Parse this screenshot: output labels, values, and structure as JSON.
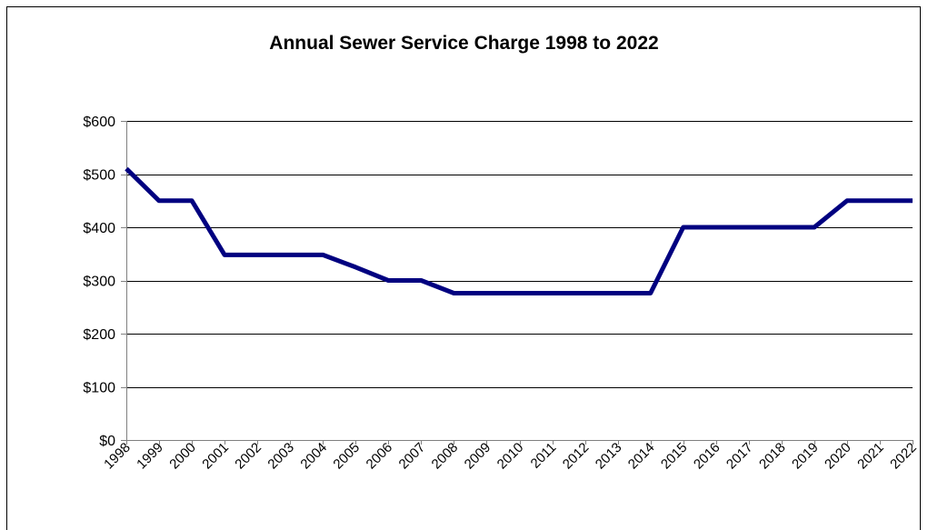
{
  "chart_data": {
    "type": "line",
    "title": "Annual Sewer Service Charge 1998 to 2022",
    "xlabel": "",
    "ylabel": "",
    "x": [
      "1998",
      "1999",
      "2000",
      "2001",
      "2002",
      "2003",
      "2004",
      "2005",
      "2006",
      "2007",
      "2008",
      "2009",
      "2010",
      "2011",
      "2012",
      "2013",
      "2014",
      "2015",
      "2016",
      "2017",
      "2018",
      "2019",
      "2020",
      "2021",
      "2022"
    ],
    "series": [
      {
        "values": [
          510,
          450,
          450,
          348,
          348,
          348,
          348,
          325,
          300,
          300,
          276,
          276,
          276,
          276,
          276,
          276,
          276,
          400,
          400,
          400,
          400,
          400,
          450,
          450,
          450
        ]
      }
    ],
    "ylim": [
      0,
      600
    ],
    "yticks": [
      0,
      100,
      200,
      300,
      400,
      500,
      600
    ],
    "ytick_labels": [
      "$0",
      "$100",
      "$200",
      "$300",
      "$400",
      "$500",
      "$600"
    ],
    "grid": "horizontal",
    "legend": "none",
    "colors": {
      "line": "#000080",
      "grid": "#000000",
      "axis": "#808080"
    }
  }
}
